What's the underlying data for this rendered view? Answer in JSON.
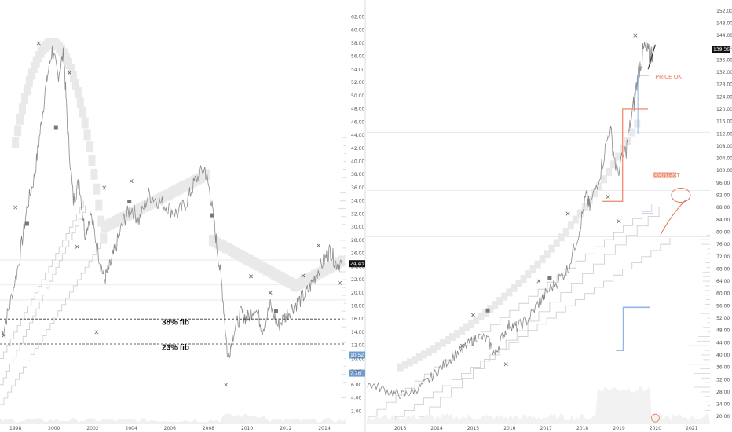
{
  "chart_data": [
    {
      "type": "line",
      "x_ticks": [
        "1998",
        "2000",
        "2002",
        "2004",
        "2006",
        "2008",
        "2010",
        "2012",
        "2014"
      ],
      "y_ticks": [
        "2.00",
        "4.00",
        "6.00",
        "8.00",
        "10.00",
        "12.00",
        "14.00",
        "16.00",
        "18.00",
        "20.00",
        "22.00",
        "24.00",
        "26.00",
        "28.00",
        "30.00",
        "32.00",
        "34.00",
        "36.00",
        "38.00",
        "40.00",
        "42.00",
        "44.00",
        "46.00",
        "48.00",
        "50.00",
        "52.00",
        "54.00",
        "56.00",
        "58.00",
        "60.00",
        "62.00"
      ],
      "ylim": [
        0,
        63.5
      ],
      "xlim": [
        1997.2,
        2015.1
      ],
      "last_price": "24.43",
      "extra_labels": [
        {
          "text": "10.52",
          "value": 10.52,
          "color": "#6e9ccf"
        },
        {
          "text": "7.76",
          "value": 7.76,
          "color": "#6e9ccf"
        }
      ],
      "fib_lines": [
        {
          "label": "38% fib",
          "value": 16.0
        },
        {
          "label": "23% fib",
          "value": 12.2
        }
      ],
      "price": [
        {
          "x": 1997.3,
          "y": 13.5
        },
        {
          "x": 1997.7,
          "y": 18.0
        },
        {
          "x": 1998.2,
          "y": 25.0
        },
        {
          "x": 1998.6,
          "y": 33.0
        },
        {
          "x": 1999.0,
          "y": 38.0
        },
        {
          "x": 1999.3,
          "y": 45.0
        },
        {
          "x": 1999.6,
          "y": 52.0
        },
        {
          "x": 1999.9,
          "y": 57.0
        },
        {
          "x": 2000.2,
          "y": 53.0
        },
        {
          "x": 2000.5,
          "y": 56.5
        },
        {
          "x": 2000.7,
          "y": 45.0
        },
        {
          "x": 2001.0,
          "y": 34.0
        },
        {
          "x": 2001.3,
          "y": 37.0
        },
        {
          "x": 2001.6,
          "y": 29.0
        },
        {
          "x": 2001.9,
          "y": 32.0
        },
        {
          "x": 2002.3,
          "y": 26.0
        },
        {
          "x": 2002.6,
          "y": 22.0
        },
        {
          "x": 2002.9,
          "y": 24.0
        },
        {
          "x": 2003.2,
          "y": 27.0
        },
        {
          "x": 2003.6,
          "y": 31.0
        },
        {
          "x": 2004.0,
          "y": 33.0
        },
        {
          "x": 2004.4,
          "y": 31.0
        },
        {
          "x": 2004.9,
          "y": 35.0
        },
        {
          "x": 2005.4,
          "y": 34.0
        },
        {
          "x": 2005.9,
          "y": 33.0
        },
        {
          "x": 2006.4,
          "y": 32.0
        },
        {
          "x": 2006.9,
          "y": 34.0
        },
        {
          "x": 2007.3,
          "y": 37.0
        },
        {
          "x": 2007.8,
          "y": 39.0
        },
        {
          "x": 2008.1,
          "y": 35.0
        },
        {
          "x": 2008.4,
          "y": 28.0
        },
        {
          "x": 2008.7,
          "y": 21.0
        },
        {
          "x": 2009.0,
          "y": 10.0
        },
        {
          "x": 2009.3,
          "y": 14.0
        },
        {
          "x": 2009.7,
          "y": 17.0
        },
        {
          "x": 2010.0,
          "y": 16.0
        },
        {
          "x": 2010.4,
          "y": 18.0
        },
        {
          "x": 2010.8,
          "y": 14.5
        },
        {
          "x": 2011.2,
          "y": 18.0
        },
        {
          "x": 2011.6,
          "y": 15.0
        },
        {
          "x": 2012.0,
          "y": 16.5
        },
        {
          "x": 2012.4,
          "y": 18.0
        },
        {
          "x": 2012.8,
          "y": 19.0
        },
        {
          "x": 2013.2,
          "y": 20.5
        },
        {
          "x": 2013.6,
          "y": 23.0
        },
        {
          "x": 2014.0,
          "y": 25.0
        },
        {
          "x": 2014.3,
          "y": 26.5
        },
        {
          "x": 2014.6,
          "y": 24.5
        },
        {
          "x": 2014.9,
          "y": 24.43
        }
      ]
    },
    {
      "type": "line",
      "x_ticks": [
        "2013",
        "2014",
        "2015",
        "2016",
        "2017",
        "2018",
        "2019",
        "2020",
        "2021"
      ],
      "y_ticks": [
        "20.00",
        "24.00",
        "28.00",
        "32.00",
        "36.00",
        "40.00",
        "44.00",
        "48.00",
        "52.00",
        "56.00",
        "60.00",
        "64.00",
        "68.00",
        "72.00",
        "76.00",
        "80.00",
        "84.00",
        "88.00",
        "92.00",
        "96.00",
        "100.00",
        "104.00",
        "108.00",
        "112.00",
        "116.00",
        "120.00",
        "124.00",
        "128.00",
        "132.00",
        "136.00",
        "140.00",
        "144.00",
        "148.00",
        "152.00"
      ],
      "ylim": [
        17.5,
        154.5
      ],
      "xlim": [
        2012.08,
        2021.5
      ],
      "last_price": "139.36",
      "annotations": [
        "PRICE OK",
        "CONTEXT"
      ],
      "price": [
        {
          "x": 2012.1,
          "y": 31.0
        },
        {
          "x": 2012.4,
          "y": 29.5
        },
        {
          "x": 2012.8,
          "y": 27.5
        },
        {
          "x": 2013.1,
          "y": 27.0
        },
        {
          "x": 2013.4,
          "y": 28.5
        },
        {
          "x": 2013.7,
          "y": 31.0
        },
        {
          "x": 2014.0,
          "y": 34.5
        },
        {
          "x": 2014.3,
          "y": 38.0
        },
        {
          "x": 2014.6,
          "y": 41.0
        },
        {
          "x": 2014.9,
          "y": 44.0
        },
        {
          "x": 2015.1,
          "y": 46.0
        },
        {
          "x": 2015.4,
          "y": 45.0
        },
        {
          "x": 2015.6,
          "y": 40.0
        },
        {
          "x": 2015.8,
          "y": 46.0
        },
        {
          "x": 2016.0,
          "y": 50.0
        },
        {
          "x": 2016.2,
          "y": 49.0
        },
        {
          "x": 2016.5,
          "y": 51.5
        },
        {
          "x": 2016.8,
          "y": 57.0
        },
        {
          "x": 2017.0,
          "y": 60.0
        },
        {
          "x": 2017.3,
          "y": 64.0
        },
        {
          "x": 2017.6,
          "y": 68.0
        },
        {
          "x": 2017.9,
          "y": 80.0
        },
        {
          "x": 2018.1,
          "y": 92.0
        },
        {
          "x": 2018.2,
          "y": 88.0
        },
        {
          "x": 2018.5,
          "y": 100.0
        },
        {
          "x": 2018.75,
          "y": 114.0
        },
        {
          "x": 2018.95,
          "y": 99.0
        },
        {
          "x": 2019.2,
          "y": 107.0
        },
        {
          "x": 2019.4,
          "y": 121.0
        },
        {
          "x": 2019.55,
          "y": 133.0
        },
        {
          "x": 2019.7,
          "y": 140.0
        },
        {
          "x": 2019.85,
          "y": 137.0
        },
        {
          "x": 2019.95,
          "y": 139.36
        }
      ]
    }
  ]
}
